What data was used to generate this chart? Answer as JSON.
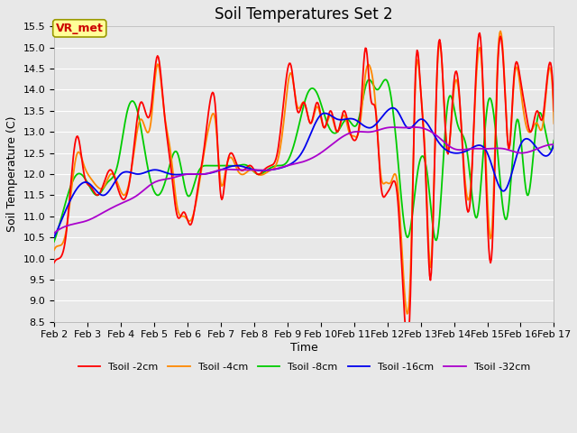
{
  "title": "Soil Temperatures Set 2",
  "xlabel": "Time",
  "ylabel": "Soil Temperature (C)",
  "ylim": [
    8.5,
    15.5
  ],
  "yticks": [
    8.5,
    9.0,
    9.5,
    10.0,
    10.5,
    11.0,
    11.5,
    12.0,
    12.5,
    13.0,
    13.5,
    14.0,
    14.5,
    15.0,
    15.5
  ],
  "x_tick_labels": [
    "Feb 2",
    "Feb 3",
    "Feb 4",
    "Feb 5",
    "Feb 6",
    "Feb 7",
    "Feb 8",
    "Feb 9",
    "Feb 10",
    "Feb 11",
    "Feb 12",
    "Feb 13",
    "Feb 14",
    "Feb 15",
    "Feb 16",
    "Feb 17"
  ],
  "colors": {
    "Tsoil -2cm": "#ff0000",
    "Tsoil -4cm": "#ff8800",
    "Tsoil -8cm": "#00cc00",
    "Tsoil -16cm": "#0000ee",
    "Tsoil -32cm": "#aa00cc"
  },
  "bg_color": "#e8e8e8",
  "white": "#ffffff",
  "annotation_text": "VR_met",
  "annotation_fg": "#cc0000",
  "annotation_bg": "#ffff99",
  "annotation_border": "#999900",
  "title_fontsize": 12,
  "axis_label_fontsize": 9,
  "tick_fontsize": 8,
  "legend_fontsize": 8,
  "line_width": 1.3,
  "kp2_x": [
    0,
    0.15,
    0.35,
    0.7,
    0.9,
    1.1,
    1.3,
    1.5,
    1.7,
    1.9,
    2.1,
    2.3,
    2.6,
    2.9,
    3.1,
    3.3,
    3.5,
    3.7,
    3.9,
    4.1,
    4.3,
    4.5,
    4.7,
    4.85,
    5.0,
    5.15,
    5.3,
    5.5,
    5.7,
    5.9,
    6.1,
    6.3,
    6.5,
    6.7,
    6.9,
    7.1,
    7.3,
    7.5,
    7.7,
    7.9,
    8.1,
    8.3,
    8.5,
    8.7,
    8.85,
    9.0,
    9.1,
    9.2,
    9.35,
    9.5,
    9.65,
    9.8,
    9.95,
    10.1,
    10.3,
    10.5,
    10.7,
    10.85,
    11.0,
    11.15,
    11.3,
    11.5,
    11.65,
    11.8,
    12.0,
    12.15,
    12.3,
    12.5,
    12.65,
    12.8,
    13.0,
    13.15,
    13.3,
    13.5,
    13.65,
    13.8,
    14.0,
    14.15,
    14.3,
    14.5,
    14.65,
    14.8,
    15.0
  ],
  "kp2_y": [
    9.9,
    10.0,
    10.5,
    12.9,
    12.0,
    11.7,
    11.5,
    11.8,
    12.1,
    11.7,
    11.4,
    12.0,
    13.7,
    13.5,
    14.8,
    13.5,
    12.2,
    11.0,
    11.1,
    10.8,
    11.6,
    12.6,
    13.8,
    13.5,
    11.5,
    12.0,
    12.5,
    12.2,
    12.1,
    12.2,
    12.0,
    12.1,
    12.2,
    12.5,
    13.8,
    14.6,
    13.5,
    13.7,
    13.2,
    13.7,
    13.1,
    13.5,
    13.0,
    13.5,
    13.1,
    12.8,
    12.9,
    13.5,
    15.0,
    13.8,
    13.5,
    11.8,
    11.5,
    11.7,
    11.5,
    8.85,
    9.3,
    14.5,
    14.0,
    12.0,
    9.5,
    14.6,
    14.5,
    12.5,
    14.2,
    14.0,
    12.0,
    11.5,
    14.2,
    15.2,
    11.0,
    10.3,
    14.3,
    14.4,
    12.6,
    14.3,
    14.2,
    13.5,
    13.0,
    13.5,
    13.3,
    14.3,
    13.5
  ],
  "kp4_x": [
    0,
    0.15,
    0.35,
    0.7,
    0.9,
    1.1,
    1.3,
    1.5,
    1.7,
    1.9,
    2.1,
    2.3,
    2.6,
    2.9,
    3.1,
    3.3,
    3.5,
    3.7,
    3.9,
    4.1,
    4.3,
    4.5,
    4.7,
    4.85,
    5.0,
    5.15,
    5.3,
    5.5,
    5.7,
    5.9,
    6.1,
    6.3,
    6.5,
    6.7,
    6.9,
    7.1,
    7.3,
    7.5,
    7.7,
    7.9,
    8.1,
    8.3,
    8.5,
    8.7,
    8.85,
    9.0,
    9.1,
    9.2,
    9.35,
    9.5,
    9.65,
    9.8,
    9.95,
    10.1,
    10.3,
    10.5,
    10.7,
    10.85,
    11.0,
    11.15,
    11.3,
    11.5,
    11.65,
    11.8,
    12.0,
    12.15,
    12.3,
    12.5,
    12.65,
    12.8,
    13.0,
    13.15,
    13.3,
    13.5,
    13.65,
    13.8,
    14.0,
    14.15,
    14.3,
    14.5,
    14.65,
    14.8,
    15.0
  ],
  "kp4_y": [
    10.2,
    10.3,
    10.6,
    12.5,
    12.2,
    11.9,
    11.7,
    11.7,
    12.0,
    11.8,
    11.5,
    12.0,
    13.3,
    13.2,
    14.6,
    13.5,
    12.5,
    11.2,
    11.0,
    10.9,
    11.5,
    12.5,
    13.3,
    13.2,
    11.8,
    12.1,
    12.4,
    12.1,
    12.0,
    12.1,
    12.0,
    12.0,
    12.1,
    12.3,
    13.3,
    14.4,
    13.6,
    13.7,
    13.2,
    13.6,
    13.1,
    13.4,
    13.0,
    13.4,
    13.0,
    12.9,
    12.9,
    13.3,
    14.4,
    14.5,
    13.6,
    12.0,
    11.8,
    11.8,
    11.8,
    9.4,
    9.8,
    14.3,
    14.0,
    12.2,
    9.8,
    14.5,
    14.5,
    12.6,
    14.0,
    13.9,
    12.2,
    11.7,
    14.0,
    14.9,
    11.5,
    10.8,
    14.5,
    14.5,
    12.6,
    14.2,
    14.0,
    13.2,
    13.0,
    13.2,
    13.1,
    14.2,
    13.2
  ],
  "kp8_x": [
    0,
    0.3,
    0.7,
    1.0,
    1.3,
    1.6,
    1.9,
    2.2,
    2.5,
    2.8,
    3.1,
    3.4,
    3.7,
    4.0,
    4.3,
    4.6,
    4.9,
    5.2,
    5.5,
    5.8,
    6.1,
    6.4,
    6.7,
    7.0,
    7.3,
    7.6,
    7.9,
    8.2,
    8.5,
    8.8,
    9.1,
    9.4,
    9.7,
    10.0,
    10.3,
    10.6,
    10.9,
    11.2,
    11.5,
    11.8,
    12.1,
    12.4,
    12.7,
    13.0,
    13.3,
    13.6,
    13.9,
    14.2,
    14.5,
    14.8,
    15.0
  ],
  "kp8_y": [
    10.4,
    11.2,
    12.0,
    11.8,
    11.5,
    11.8,
    12.2,
    13.5,
    13.5,
    12.2,
    11.5,
    12.0,
    12.5,
    11.5,
    12.0,
    12.2,
    12.2,
    12.2,
    12.2,
    12.2,
    12.0,
    12.1,
    12.2,
    12.3,
    13.0,
    13.9,
    13.9,
    13.2,
    13.0,
    13.3,
    13.2,
    14.2,
    14.0,
    14.2,
    12.5,
    10.5,
    12.0,
    12.0,
    10.5,
    13.6,
    13.2,
    12.5,
    11.0,
    13.6,
    12.6,
    11.0,
    13.3,
    11.5,
    13.3,
    12.8,
    12.8
  ],
  "kp16_x": [
    0,
    0.5,
    1.0,
    1.5,
    2.0,
    2.5,
    3.0,
    3.5,
    4.0,
    4.5,
    5.0,
    5.5,
    6.0,
    6.5,
    7.0,
    7.5,
    8.0,
    8.5,
    9.0,
    9.5,
    10.0,
    10.3,
    10.6,
    11.0,
    11.5,
    12.0,
    12.5,
    13.0,
    13.5,
    14.0,
    14.5,
    15.0
  ],
  "kp16_y": [
    10.5,
    11.4,
    11.8,
    11.5,
    12.0,
    12.0,
    12.1,
    12.0,
    12.0,
    12.0,
    12.1,
    12.2,
    12.1,
    12.1,
    12.2,
    12.6,
    13.4,
    13.3,
    13.3,
    13.1,
    13.5,
    13.5,
    13.1,
    13.3,
    12.8,
    12.5,
    12.6,
    12.5,
    11.6,
    12.7,
    12.6,
    12.7
  ],
  "kp32_x": [
    0,
    0.5,
    1.0,
    1.5,
    2.0,
    2.5,
    3.0,
    3.5,
    4.0,
    4.5,
    5.0,
    5.5,
    6.0,
    6.5,
    7.0,
    7.5,
    8.0,
    8.5,
    9.0,
    9.5,
    10.0,
    10.5,
    11.0,
    11.5,
    12.0,
    12.5,
    13.0,
    13.5,
    14.0,
    14.5,
    15.0
  ],
  "kp32_y": [
    10.6,
    10.8,
    10.9,
    11.1,
    11.3,
    11.5,
    11.8,
    11.9,
    12.0,
    12.0,
    12.1,
    12.1,
    12.1,
    12.1,
    12.2,
    12.3,
    12.5,
    12.8,
    13.0,
    13.0,
    13.1,
    13.1,
    13.1,
    12.9,
    12.6,
    12.6,
    12.6,
    12.6,
    12.5,
    12.6,
    12.7
  ]
}
